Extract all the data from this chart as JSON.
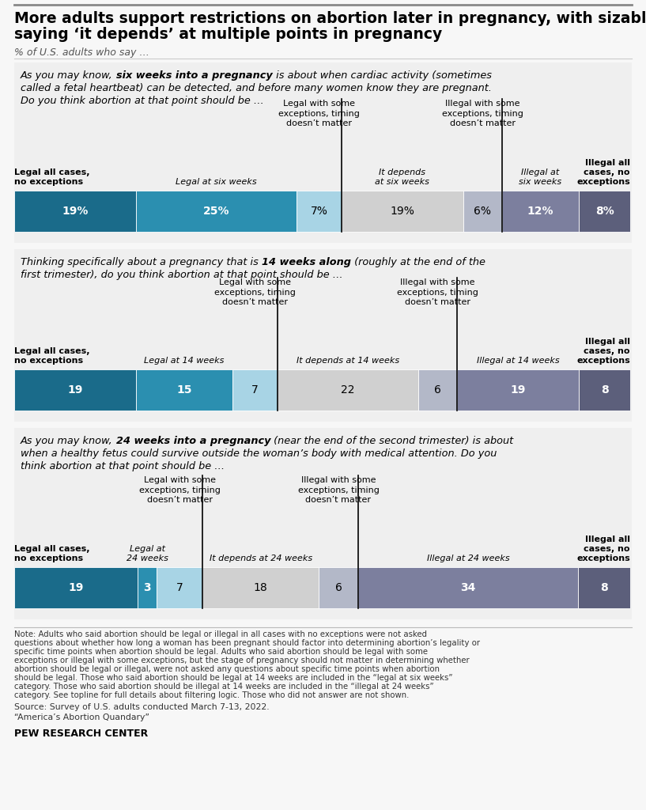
{
  "title_line1": "More adults support restrictions on abortion later in pregnancy, with sizable shares",
  "title_line2": "saying ‘it depends’ at multiple points in pregnancy",
  "subtitle": "% of U.S. adults who say …",
  "background_color": "#f7f7f7",
  "panel_bg": "#efefef",
  "charts": [
    {
      "question_parts": [
        {
          "text": "As you may know, ",
          "style": "italic"
        },
        {
          "text": "six weeks into a pregnancy",
          "style": "bold-italic"
        },
        {
          "text": " is about when cardiac activity (sometimes called a fetal heartbeat) can be detected, and before many women know they are pregnant. Do you think abortion at that point should be …",
          "style": "italic"
        }
      ],
      "segments": [
        19,
        25,
        7,
        19,
        6,
        12,
        8
      ],
      "colors": [
        "#1a6b8a",
        "#2b8fb0",
        "#a8d4e5",
        "#d0d0d0",
        "#b3b8c8",
        "#7c7f9e",
        "#5c5f7b"
      ],
      "value_labels": [
        "19%",
        "25%",
        "7%",
        "19%",
        "6%",
        "12%",
        "8%"
      ],
      "text_colors": [
        "white",
        "white",
        "black",
        "black",
        "black",
        "white",
        "white"
      ],
      "top_labels": [
        {
          "text": "",
          "style": "normal",
          "col": 0
        },
        {
          "text": "",
          "style": "italic",
          "col": 1
        },
        {
          "text": "Legal with some\nexceptions, timing\ndoesn’t matter",
          "style": "normal",
          "col": 2
        },
        {
          "text": "",
          "style": "italic",
          "col": 3
        },
        {
          "text": "Illegal with some\nexceptions, timing\ndoesn’t matter",
          "style": "normal",
          "col": 4
        },
        {
          "text": "",
          "style": "normal",
          "col": 5
        },
        {
          "text": "",
          "style": "bold",
          "col": 6
        }
      ],
      "bot_labels": [
        {
          "text": "Legal all cases,\nno exceptions",
          "style": "bold",
          "col": 0
        },
        {
          "text": "Legal at six weeks",
          "style": "italic",
          "col": 1
        },
        {
          "text": "",
          "style": "normal",
          "col": 2
        },
        {
          "text": "It depends\nat six weeks",
          "style": "italic",
          "col": 3
        },
        {
          "text": "",
          "style": "normal",
          "col": 4
        },
        {
          "text": "Illegal at\nsix weeks",
          "style": "italic",
          "col": 5
        },
        {
          "text": "Illegal all\ncases, no\nexceptions",
          "style": "bold",
          "col": 6
        }
      ],
      "dividers_after": [
        2,
        4
      ]
    },
    {
      "question_parts": [
        {
          "text": "Thinking specifically about a pregnancy that is ",
          "style": "italic"
        },
        {
          "text": "14 weeks along",
          "style": "bold-italic"
        },
        {
          "text": " (roughly at the end of the first trimester), do you think abortion at that point should be …",
          "style": "italic"
        }
      ],
      "segments": [
        19,
        15,
        7,
        22,
        6,
        19,
        8
      ],
      "colors": [
        "#1a6b8a",
        "#2b8fb0",
        "#a8d4e5",
        "#d0d0d0",
        "#b3b8c8",
        "#7c7f9e",
        "#5c5f7b"
      ],
      "value_labels": [
        "19",
        "15",
        "7",
        "22",
        "6",
        "19",
        "8"
      ],
      "text_colors": [
        "white",
        "white",
        "black",
        "black",
        "black",
        "white",
        "white"
      ],
      "top_labels": [
        {
          "text": "",
          "style": "normal",
          "col": 0
        },
        {
          "text": "",
          "style": "italic",
          "col": 1
        },
        {
          "text": "Legal with some\nexceptions, timing\ndoesn’t matter",
          "style": "normal",
          "col": 2
        },
        {
          "text": "",
          "style": "italic",
          "col": 3
        },
        {
          "text": "Illegal with some\nexceptions, timing\ndoesn’t matter",
          "style": "normal",
          "col": 4
        },
        {
          "text": "",
          "style": "normal",
          "col": 5
        },
        {
          "text": "",
          "style": "bold",
          "col": 6
        }
      ],
      "bot_labels": [
        {
          "text": "Legal all cases,\nno exceptions",
          "style": "bold",
          "col": 0
        },
        {
          "text": "Legal at 14 weeks",
          "style": "italic",
          "col": 1
        },
        {
          "text": "",
          "style": "normal",
          "col": 2
        },
        {
          "text": "It depends at 14 weeks",
          "style": "italic",
          "col": 3
        },
        {
          "text": "",
          "style": "normal",
          "col": 4
        },
        {
          "text": "Illegal at 14 weeks",
          "style": "italic",
          "col": 5
        },
        {
          "text": "Illegal all\ncases, no\nexceptions",
          "style": "bold",
          "col": 6
        }
      ],
      "dividers_after": [
        2,
        4
      ]
    },
    {
      "question_parts": [
        {
          "text": "As you may know, ",
          "style": "italic"
        },
        {
          "text": "24 weeks into a pregnancy",
          "style": "bold-italic"
        },
        {
          "text": " (near the end of the second trimester) is about when a healthy fetus could survive outside the woman’s body with medical attention. Do you think abortion at that point should be …",
          "style": "italic"
        }
      ],
      "segments": [
        19,
        3,
        7,
        18,
        6,
        34,
        8
      ],
      "colors": [
        "#1a6b8a",
        "#2b8fb0",
        "#a8d4e5",
        "#d0d0d0",
        "#b3b8c8",
        "#7c7f9e",
        "#5c5f7b"
      ],
      "value_labels": [
        "19",
        "3",
        "7",
        "18",
        "6",
        "34",
        "8"
      ],
      "text_colors": [
        "white",
        "white",
        "black",
        "black",
        "black",
        "white",
        "white"
      ],
      "top_labels": [
        {
          "text": "",
          "style": "normal",
          "col": 0
        },
        {
          "text": "",
          "style": "italic",
          "col": 1
        },
        {
          "text": "Legal with some\nexceptions, timing\ndoesn’t matter",
          "style": "normal",
          "col": 2
        },
        {
          "text": "",
          "style": "italic",
          "col": 3
        },
        {
          "text": "Illegal with some\nexceptions, timing\ndoesn’t matter",
          "style": "normal",
          "col": 4
        },
        {
          "text": "",
          "style": "normal",
          "col": 5
        },
        {
          "text": "",
          "style": "bold",
          "col": 6
        }
      ],
      "bot_labels": [
        {
          "text": "Legal all cases,\nno exceptions",
          "style": "bold",
          "col": 0
        },
        {
          "text": "Legal at\n24 weeks",
          "style": "italic",
          "col": 1
        },
        {
          "text": "",
          "style": "normal",
          "col": 2
        },
        {
          "text": "It depends at 24 weeks",
          "style": "italic",
          "col": 3
        },
        {
          "text": "",
          "style": "normal",
          "col": 4
        },
        {
          "text": "Illegal at 24 weeks",
          "style": "italic",
          "col": 5
        },
        {
          "text": "Illegal all\ncases, no\nexceptions",
          "style": "bold",
          "col": 6
        }
      ],
      "dividers_after": [
        2,
        4
      ]
    }
  ],
  "note_text": "Note: Adults who said abortion should be legal or illegal in all cases with no exceptions were not asked questions about whether how long a woman has been pregnant should factor into determining abortion’s legality or specific time points when abortion should be legal. Adults who said abortion should be legal with some exceptions or illegal with some exceptions, but the stage of pregnancy should not matter in determining whether abortion should be legal or illegal, were not asked any questions about specific time points when abortion should be legal. Those who said abortion should be legal at 14 weeks are included in the “legal at six weeks” category. Those who said abortion should be illegal at 14 weeks are included in the “illegal at 24 weeks” category. See topline for full details about filtering logic. Those who did not answer are not shown.",
  "source_line1": "Source: Survey of U.S. adults conducted March 7-13, 2022.",
  "source_line2": "“America’s Abortion Quandary”",
  "pew_text": "PEW RESEARCH CENTER"
}
